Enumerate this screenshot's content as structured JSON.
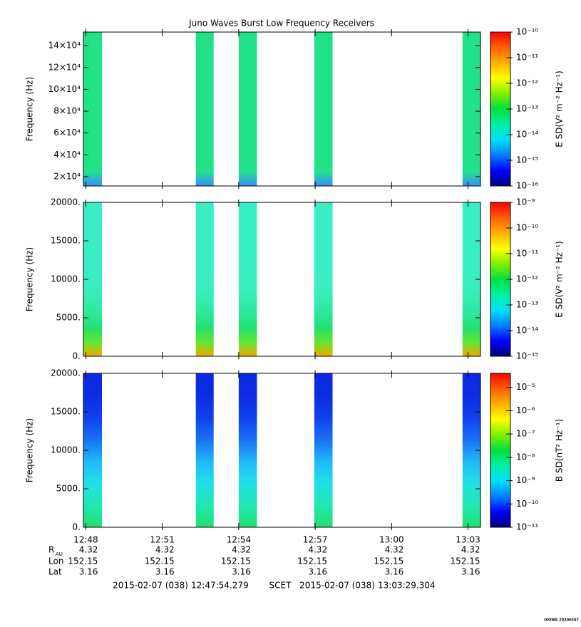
{
  "title": "Juno Waves Burst Low Frequency Receivers",
  "chart_data": [
    {
      "type": "spectrogram",
      "ylabel": "Frequency (Hz)",
      "ylim": [
        11500,
        152500
      ],
      "yticks": [
        {
          "value": 20000,
          "label": "2×10⁴"
        },
        {
          "value": 40000,
          "label": "4×10⁴"
        },
        {
          "value": 60000,
          "label": "6×10⁴"
        },
        {
          "value": 80000,
          "label": "8×10⁴"
        },
        {
          "value": 100000,
          "label": "10×10⁴"
        },
        {
          "value": 120000,
          "label": "12×10⁴"
        },
        {
          "value": 140000,
          "label": "14×10⁴"
        }
      ],
      "burst_colors": [
        "#22e288",
        "#22e288",
        "#22e288",
        "#22e288",
        "#22e288",
        "#22e288",
        "#22e288",
        "#22e288",
        "#22e288",
        "#22e288",
        "#22e28a",
        "#3a8cff"
      ],
      "colorbar": {
        "label": "E SD(V² m⁻² Hz⁻¹)",
        "log": true,
        "lim": [
          1e-16,
          1e-10
        ],
        "ticks": [
          {
            "value": 1e-16,
            "label": "10⁻¹⁶"
          },
          {
            "value": 1e-15,
            "label": "10⁻¹⁵"
          },
          {
            "value": 1e-14,
            "label": "10⁻¹⁴"
          },
          {
            "value": 1e-13,
            "label": "10⁻¹³"
          },
          {
            "value": 1e-12,
            "label": "10⁻¹²"
          },
          {
            "value": 1e-11,
            "label": "10⁻¹¹"
          },
          {
            "value": 1e-10,
            "label": "10⁻¹⁰"
          }
        ]
      }
    },
    {
      "type": "spectrogram",
      "ylabel": "Frequency (Hz)",
      "ylim": [
        0,
        20000
      ],
      "yticks": [
        {
          "value": 0,
          "label": "0."
        },
        {
          "value": 5000,
          "label": "5000."
        },
        {
          "value": 10000,
          "label": "10000."
        },
        {
          "value": 15000,
          "label": "15000."
        },
        {
          "value": 20000,
          "label": "20000."
        }
      ],
      "burst_colors": [
        "#3aeec4",
        "#3aeec4",
        "#3aeec4",
        "#3aeec4",
        "#3aeec4",
        "#3aeec4",
        "#3aeec0",
        "#34ecb0",
        "#2ce898",
        "#24e070",
        "#60e830",
        "#f0a800"
      ],
      "colorbar": {
        "label": "E SD(V² m⁻² Hz⁻¹)",
        "log": true,
        "lim": [
          1e-15,
          1e-09
        ],
        "ticks": [
          {
            "value": 1e-15,
            "label": "10⁻¹⁵"
          },
          {
            "value": 1e-14,
            "label": "10⁻¹⁴"
          },
          {
            "value": 1e-13,
            "label": "10⁻¹³"
          },
          {
            "value": 1e-12,
            "label": "10⁻¹²"
          },
          {
            "value": 1e-11,
            "label": "10⁻¹¹"
          },
          {
            "value": 1e-10,
            "label": "10⁻¹⁰"
          },
          {
            "value": 1e-09,
            "label": "10⁻⁹"
          }
        ]
      }
    },
    {
      "type": "spectrogram",
      "ylabel": "Frequency (Hz)",
      "ylim": [
        0,
        20000
      ],
      "yticks": [
        {
          "value": 0,
          "label": "0."
        },
        {
          "value": 5000,
          "label": "5000."
        },
        {
          "value": 10000,
          "label": "10000."
        },
        {
          "value": 15000,
          "label": "15000."
        },
        {
          "value": 20000,
          "label": "20000."
        }
      ],
      "burst_colors": [
        "#0c28e0",
        "#0c2ce4",
        "#1040ec",
        "#1870f4",
        "#20b8f8",
        "#22e0e8",
        "#22e8b0",
        "#22e070"
      ],
      "colorbar": {
        "label": "B SD(nT² Hz⁻¹)",
        "log": true,
        "lim": [
          1e-11,
          4e-05
        ],
        "ticks": [
          {
            "value": 1e-11,
            "label": "10⁻¹¹"
          },
          {
            "value": 1e-10,
            "label": "10⁻¹⁰"
          },
          {
            "value": 1e-09,
            "label": "10⁻⁹"
          },
          {
            "value": 1e-08,
            "label": "10⁻⁸"
          },
          {
            "value": 1e-07,
            "label": "10⁻⁷"
          },
          {
            "value": 1e-06,
            "label": "10⁻⁶"
          },
          {
            "value": 1e-05,
            "label": "10⁻⁵"
          }
        ]
      }
    }
  ],
  "colormap": [
    "#000080",
    "#0000ff",
    "#0080ff",
    "#00e0ff",
    "#00f0a0",
    "#00e040",
    "#80f000",
    "#ffff00",
    "#ffb000",
    "#ff6000",
    "#ff0000"
  ],
  "time_axis": {
    "xticks": [
      "12:48",
      "12:51",
      "12:54",
      "12:57",
      "13:00",
      "13:03"
    ],
    "bursts": [
      [
        "12:47:54",
        "12:48:38"
      ],
      [
        "12:52:19",
        "12:53:01"
      ],
      [
        "12:54:00",
        "12:54:43"
      ],
      [
        "12:56:58",
        "12:57:41"
      ],
      [
        "13:02:47",
        "13:03:29"
      ]
    ],
    "start_date": "2015-02-07 (038)",
    "start_time": "12:47:54.279",
    "frame": "SCET",
    "end_date": "2015-02-07 (038)",
    "end_time": "13:03:29.304"
  },
  "ephemeris": [
    {
      "label": "R",
      "subscript": "AU",
      "values": [
        4.32,
        4.32,
        4.32,
        4.32,
        4.32,
        4.32
      ]
    },
    {
      "label": "Lon",
      "values": [
        152.15,
        152.15,
        152.15,
        152.15,
        152.15,
        152.15
      ]
    },
    {
      "label": "Lat",
      "values": [
        3.16,
        3.16,
        3.16,
        3.16,
        3.16,
        3.16
      ]
    }
  ],
  "credit": "UIOWA 20200307"
}
